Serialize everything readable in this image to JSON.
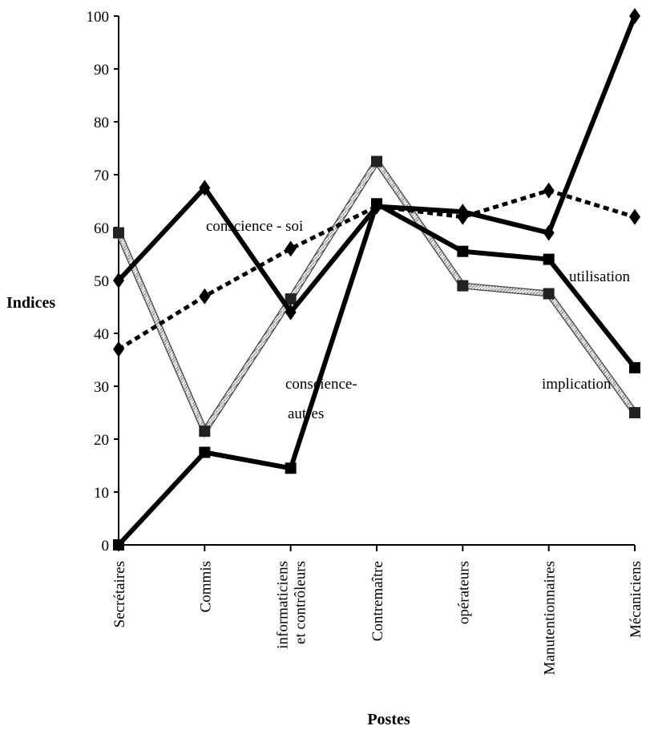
{
  "chart_data": {
    "type": "line",
    "xlabel": "Postes",
    "ylabel": "Indices",
    "ylim": [
      0,
      100
    ],
    "yticks": [
      0,
      10,
      20,
      30,
      40,
      50,
      60,
      70,
      80,
      90,
      100
    ],
    "categories": [
      "Secrétaires",
      "Commis",
      "informaticiens et contrôleurs",
      "Contremaître",
      "opérateurs",
      "Manutentionnaires",
      "Mécaniciens"
    ],
    "category_lines": [
      [
        "Secrétaires"
      ],
      [
        "Commis"
      ],
      [
        "informaticiens",
        "et contrôleurs"
      ],
      [
        "Contremaître"
      ],
      [
        "opérateurs"
      ],
      [
        "Manutentionnaires"
      ],
      [
        "Mécaniciens"
      ]
    ],
    "series": [
      {
        "name": "conscience - soi",
        "style": "dashed",
        "marker": "diamond",
        "values": [
          37,
          47,
          56,
          64,
          62,
          67,
          62
        ]
      },
      {
        "name": "utilisation",
        "style": "solid",
        "marker": "diamond",
        "values": [
          50,
          67.5,
          44,
          64,
          63,
          59,
          100
        ]
      },
      {
        "name": "conscience-autres",
        "label_lines": [
          "conscience-",
          "autres"
        ],
        "style": "solid",
        "marker": "square",
        "values": [
          0,
          17.5,
          14.5,
          64.5,
          55.5,
          54,
          33.5
        ]
      },
      {
        "name": "implication",
        "style": "hatched",
        "marker": "square",
        "values": [
          59,
          21.5,
          46.5,
          72.5,
          49,
          47.5,
          25
        ]
      }
    ]
  }
}
